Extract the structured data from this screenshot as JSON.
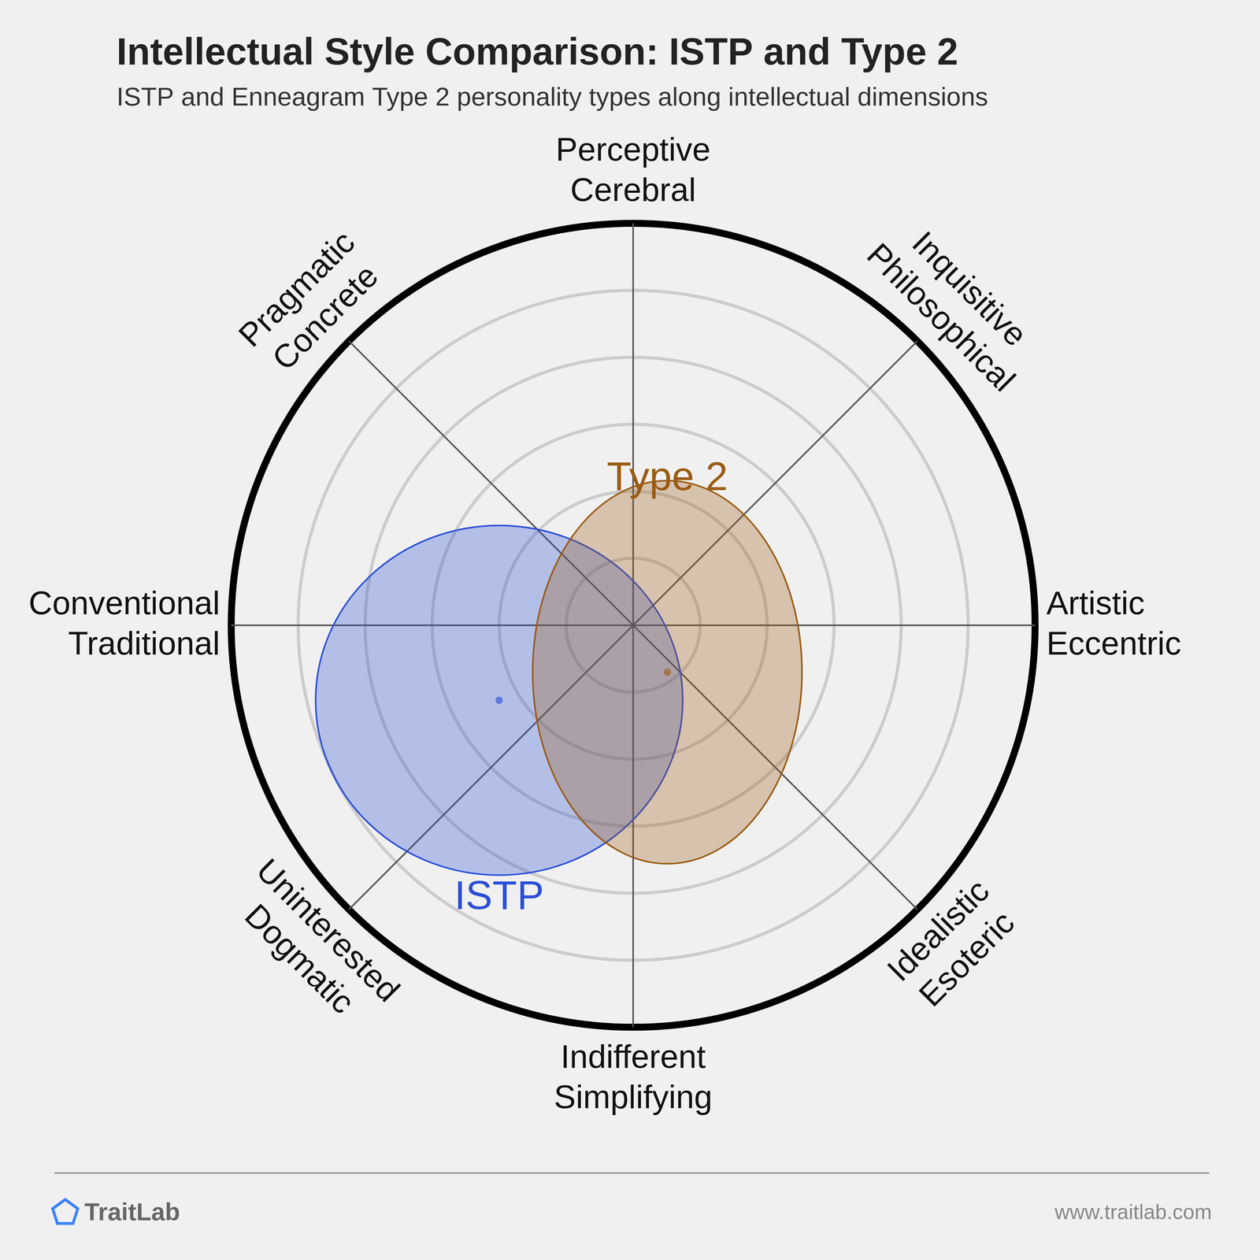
{
  "chart_data": {
    "type": "ellipse",
    "title": "Intellectual Style Comparison: ISTP and Type 2",
    "subtitle": "ISTP and Enneagram Type 2 personality types along intellectual dimensions",
    "axes": [
      [
        "Perceptive",
        "Cerebral"
      ],
      [
        "Inquisitive",
        "Philosophical"
      ],
      [
        "Artistic",
        "Eccentric"
      ],
      [
        "Idealistic",
        "Esoteric"
      ],
      [
        "Indifferent",
        "Simplifying"
      ],
      [
        "Uninterested",
        "Dogmatic"
      ],
      [
        "Conventional",
        "Traditional"
      ],
      [
        "Pragmatic",
        "Concrete"
      ]
    ],
    "xlim": [
      -6,
      6
    ],
    "ylim": [
      -6,
      6
    ],
    "rings": [
      1,
      2,
      3,
      4,
      5,
      6
    ],
    "tick_labels": false,
    "series": [
      {
        "name": "ISTP",
        "color": "#2b4fd6",
        "center": [
          -2.0,
          -1.12
        ],
        "radii": [
          2.74,
          2.61
        ]
      },
      {
        "name": "Type 2",
        "color": "#9a5b13",
        "center": [
          0.51,
          -0.7
        ],
        "radii": [
          2.01,
          2.86
        ]
      }
    ],
    "footer": {
      "brand": "TraitLab",
      "url": "www.traitlab.com"
    }
  }
}
